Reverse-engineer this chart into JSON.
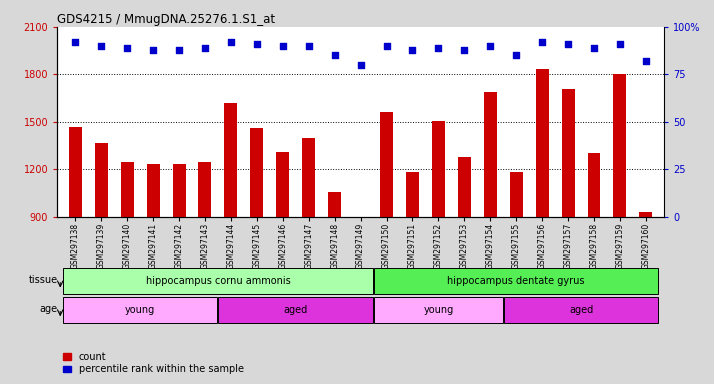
{
  "title": "GDS4215 / MmugDNA.25276.1.S1_at",
  "samples": [
    "GSM297138",
    "GSM297139",
    "GSM297140",
    "GSM297141",
    "GSM297142",
    "GSM297143",
    "GSM297144",
    "GSM297145",
    "GSM297146",
    "GSM297147",
    "GSM297148",
    "GSM297149",
    "GSM297150",
    "GSM297151",
    "GSM297152",
    "GSM297153",
    "GSM297154",
    "GSM297155",
    "GSM297156",
    "GSM297157",
    "GSM297158",
    "GSM297159",
    "GSM297160"
  ],
  "counts": [
    1470,
    1370,
    1250,
    1235,
    1235,
    1245,
    1620,
    1460,
    1310,
    1400,
    1060,
    870,
    1560,
    1185,
    1505,
    1280,
    1690,
    1185,
    1835,
    1710,
    1305,
    1800,
    930
  ],
  "percentile_ranks": [
    92,
    90,
    89,
    88,
    88,
    89,
    92,
    91,
    90,
    90,
    85,
    80,
    90,
    88,
    89,
    88,
    90,
    85,
    92,
    91,
    89,
    91,
    82
  ],
  "ylim_left": [
    900,
    2100
  ],
  "ylim_right": [
    0,
    100
  ],
  "yticks_left": [
    900,
    1200,
    1500,
    1800,
    2100
  ],
  "yticks_right": [
    0,
    25,
    50,
    75,
    100
  ],
  "bar_color": "#cc0000",
  "dot_color": "#0000cc",
  "tissue_groups": [
    {
      "label": "hippocampus cornu ammonis",
      "start": 0,
      "end": 11,
      "color": "#aaffaa"
    },
    {
      "label": "hippocampus dentate gyrus",
      "start": 12,
      "end": 22,
      "color": "#55ee55"
    }
  ],
  "age_groups": [
    {
      "label": "young",
      "start": 0,
      "end": 5,
      "color": "#ffaaff"
    },
    {
      "label": "aged",
      "start": 6,
      "end": 11,
      "color": "#dd33dd"
    },
    {
      "label": "young",
      "start": 12,
      "end": 16,
      "color": "#ffaaff"
    },
    {
      "label": "aged",
      "start": 17,
      "end": 22,
      "color": "#dd33dd"
    }
  ],
  "tissue_label": "tissue",
  "age_label": "age",
  "legend_count_label": "count",
  "legend_pct_label": "percentile rank within the sample",
  "background_color": "#d8d8d8",
  "plot_bg_color": "#ffffff"
}
